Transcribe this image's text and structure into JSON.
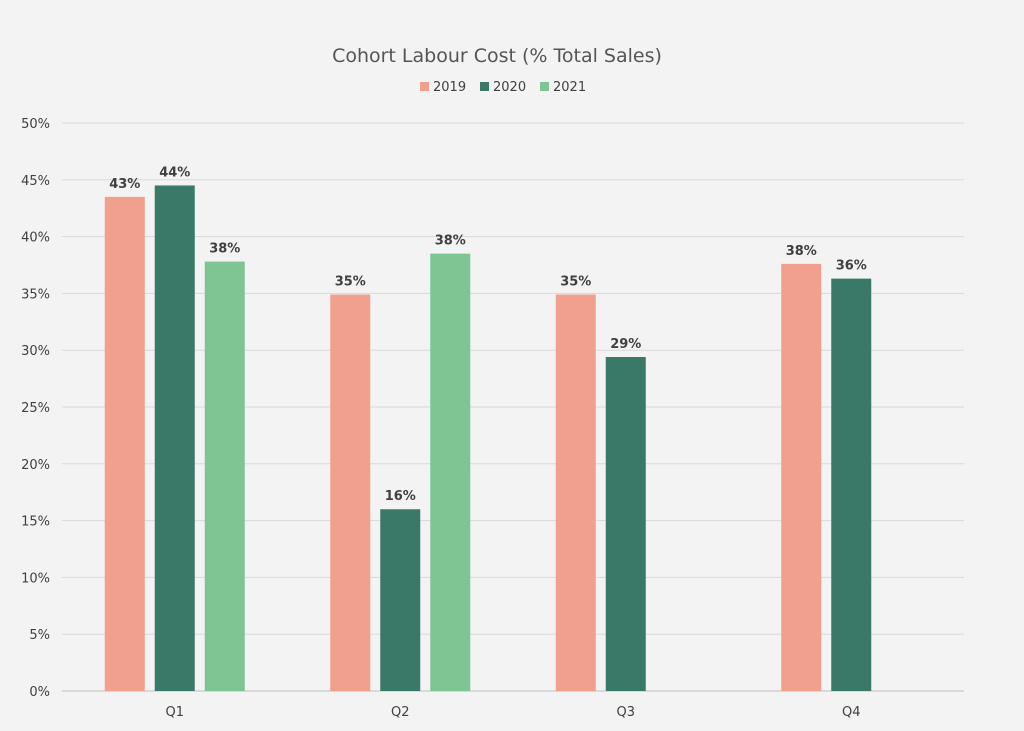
{
  "chart_data": {
    "type": "bar",
    "title": "Cohort Labour Cost (% Total Sales)",
    "xlabel": "",
    "ylabel": "",
    "categories": [
      "Q1",
      "Q2",
      "Q3",
      "Q4"
    ],
    "ylim": [
      0,
      50
    ],
    "y_ticks": [
      "0%",
      "5%",
      "10%",
      "15%",
      "20%",
      "25%",
      "30%",
      "35%",
      "40%",
      "45%",
      "50%"
    ],
    "y_tick_values": [
      0,
      5,
      10,
      15,
      20,
      25,
      30,
      35,
      40,
      45,
      50
    ],
    "grid": true,
    "legend_position": "top-center",
    "series": [
      {
        "name": "2019",
        "color": "#f1a08d",
        "values": [
          43.5,
          34.9,
          34.9,
          37.6
        ],
        "labels": [
          "43%",
          "35%",
          "35%",
          "38%"
        ]
      },
      {
        "name": "2020",
        "color": "#3a7868",
        "values": [
          44.5,
          16.0,
          29.4,
          36.3
        ],
        "labels": [
          "44%",
          "16%",
          "29%",
          "36%"
        ]
      },
      {
        "name": "2021",
        "color": "#7dc694",
        "values": [
          37.8,
          38.5,
          null,
          null
        ],
        "labels": [
          "38%",
          "38%",
          "",
          ""
        ]
      }
    ]
  }
}
